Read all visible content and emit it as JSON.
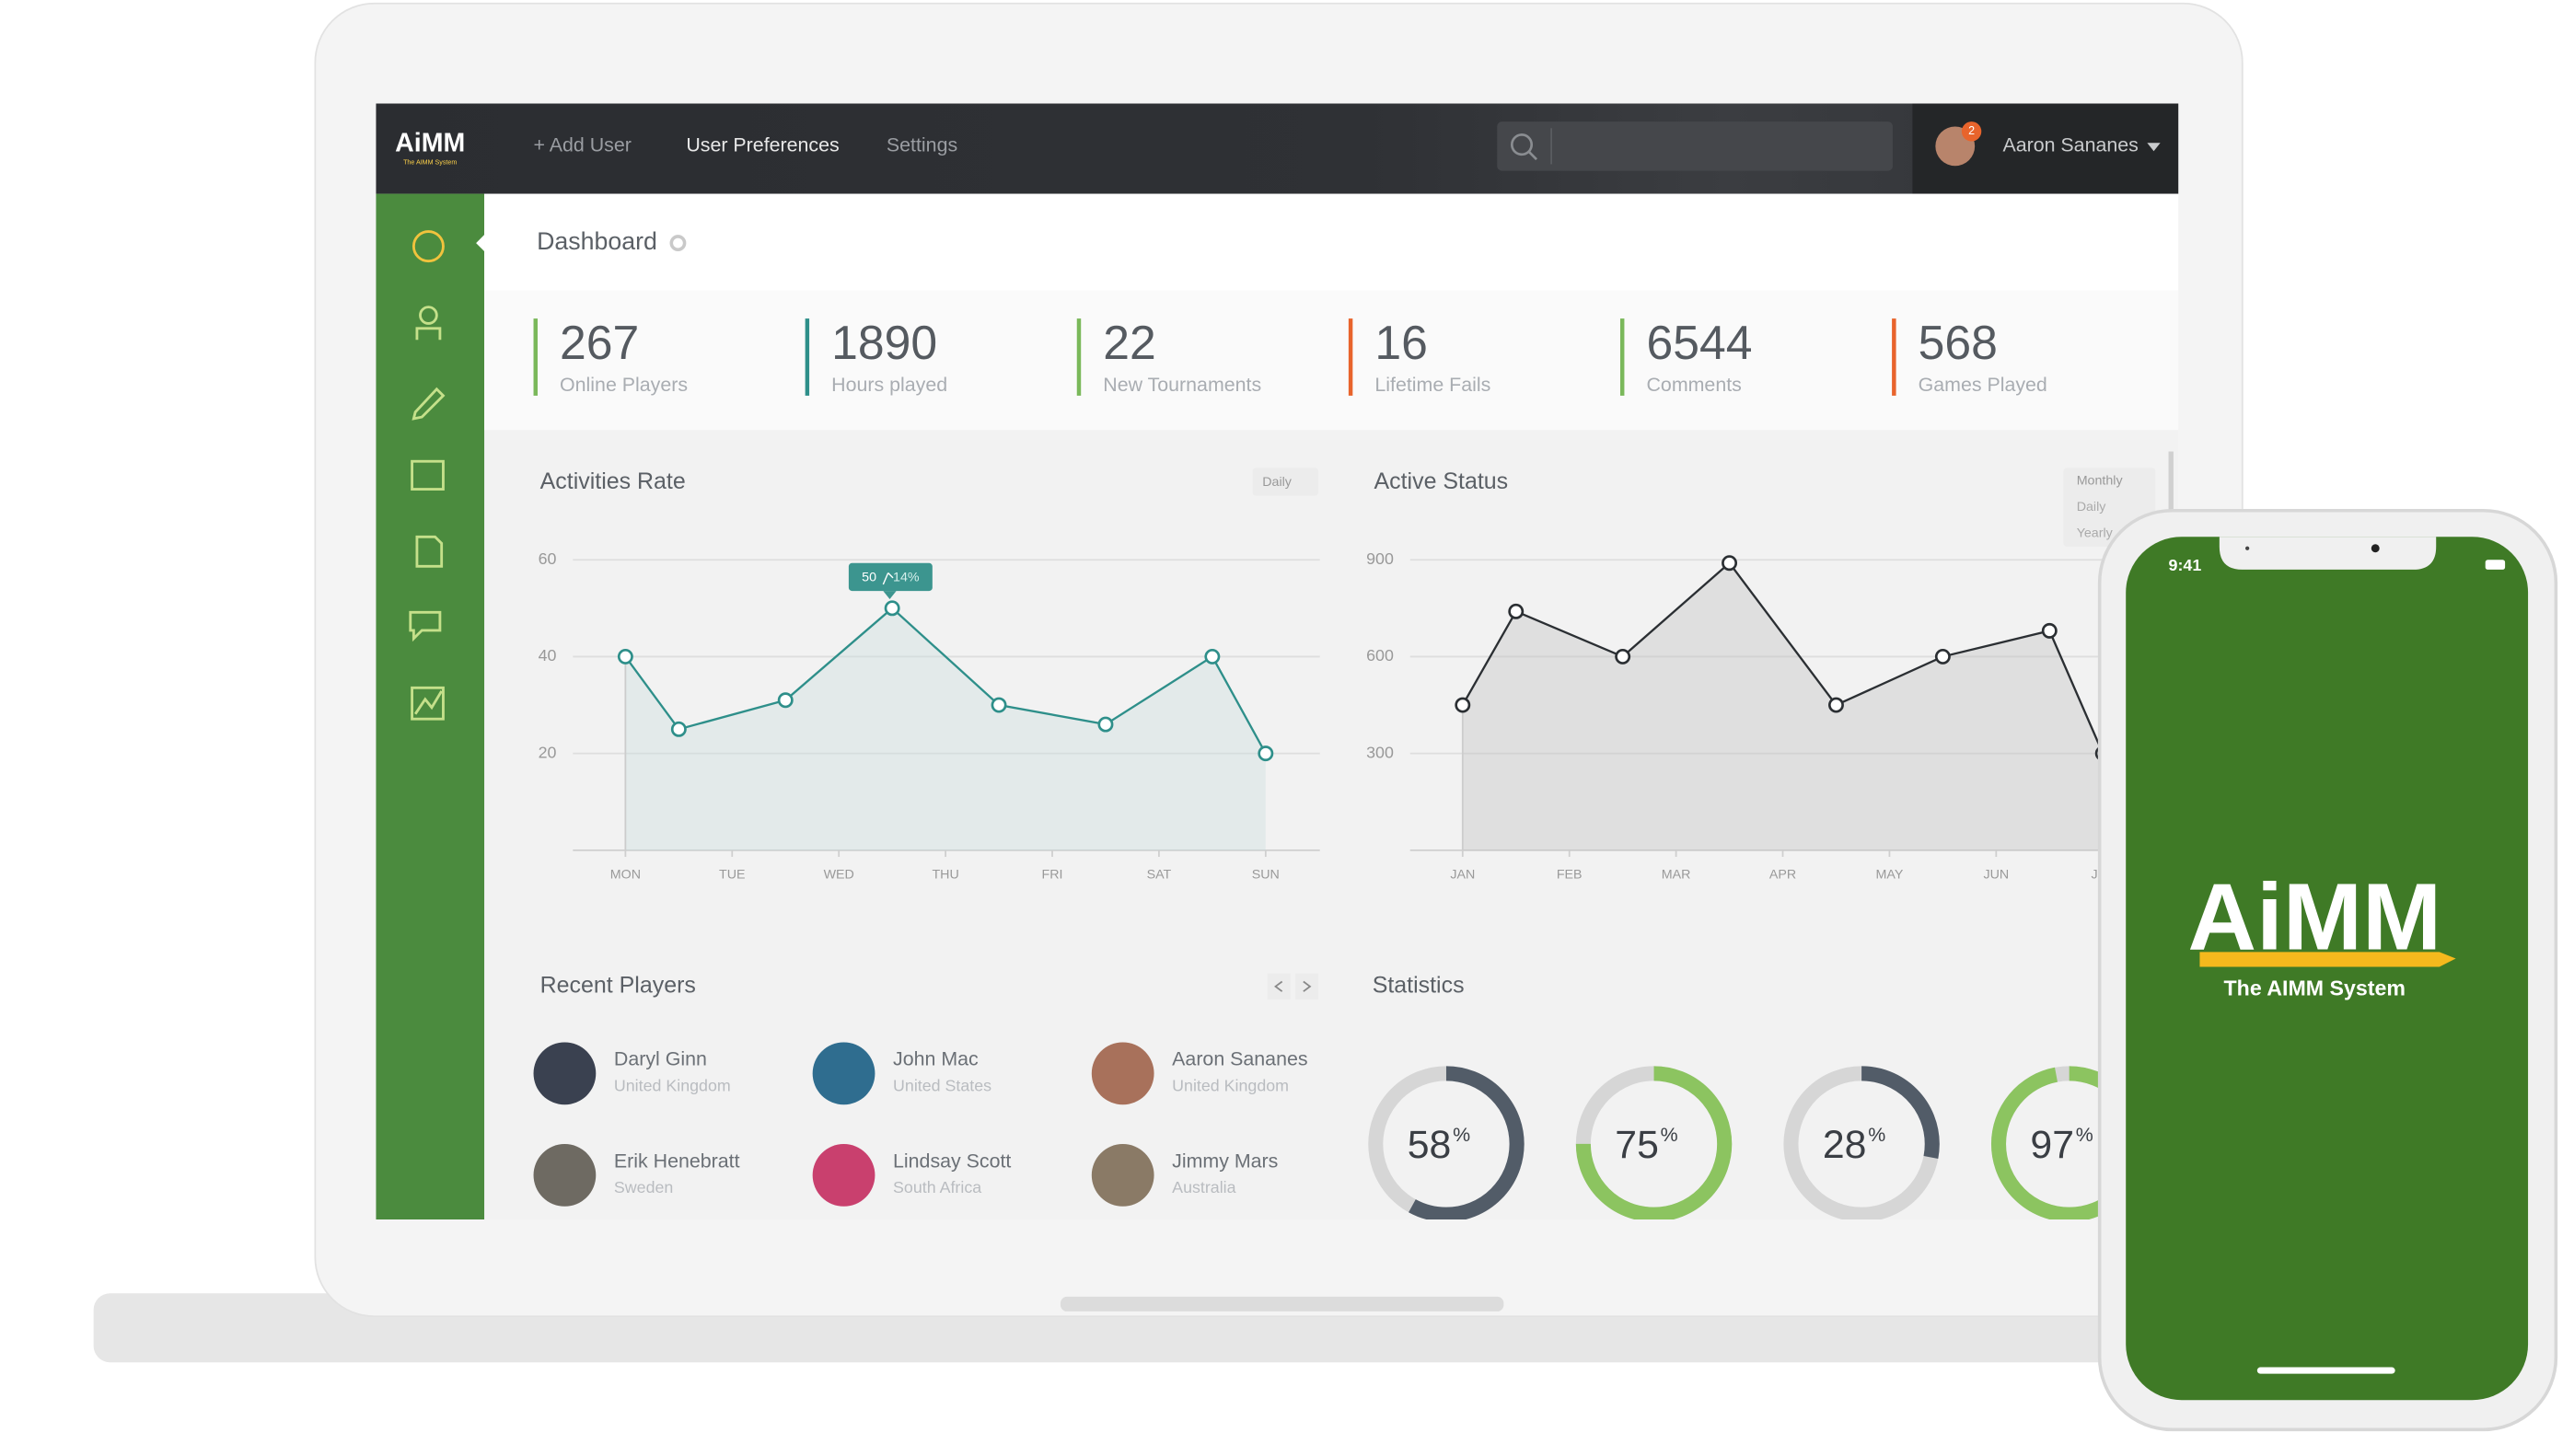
{
  "nav": {
    "logo": "AiMM",
    "logo_sub": "The AIMM System",
    "links": [
      "+ Add User",
      "User Preferences",
      "Settings"
    ],
    "user": "Aaron Sananes",
    "badge": "2"
  },
  "header": {
    "title": "Dashboard"
  },
  "stats": [
    {
      "value": "267",
      "label": "Online Players",
      "color": "#7ab85a"
    },
    {
      "value": "1890",
      "label": "Hours played",
      "color": "#2e8f8a"
    },
    {
      "value": "22",
      "label": "New Tournaments",
      "color": "#7ab85a"
    },
    {
      "value": "16",
      "label": "Lifetime Fails",
      "color": "#e8642c"
    },
    {
      "value": "6544",
      "label": "Comments",
      "color": "#7ab85a"
    },
    {
      "value": "568",
      "label": "Games Played",
      "color": "#e8642c"
    }
  ],
  "activities_chart": {
    "type": "line",
    "title": "Activities Rate",
    "dropdown": "Daily",
    "x": [
      0,
      0.5,
      1.5,
      2.5,
      3.5,
      4.5,
      5.5,
      6
    ],
    "values": [
      40,
      25,
      31,
      50,
      30,
      26,
      40,
      20
    ],
    "xlim": [
      0,
      6
    ],
    "xticks": [
      {
        "value": 0,
        "label": "MON"
      },
      {
        "value": 1,
        "label": "TUE"
      },
      {
        "value": 2,
        "label": "WED"
      },
      {
        "value": 3,
        "label": "THU"
      },
      {
        "value": 4,
        "label": "FRI"
      },
      {
        "value": 5,
        "label": "SAT"
      },
      {
        "value": 6,
        "label": "SUN"
      }
    ],
    "ylim": [
      0,
      60
    ],
    "yticks": [
      20,
      40,
      60
    ],
    "color": "#2e8f8a",
    "tooltip_value": "50",
    "tooltip_change": "14%"
  },
  "status_chart": {
    "type": "line",
    "title": "Active Status",
    "dropdown": [
      "Monthly",
      "Daily",
      "Yearly"
    ],
    "x": [
      0,
      0.5,
      1.5,
      2.5,
      3.5,
      4.5,
      5.5,
      6
    ],
    "values": [
      450,
      740,
      600,
      890,
      450,
      600,
      680,
      300
    ],
    "xlim": [
      0,
      6
    ],
    "xticks": [
      {
        "value": 0,
        "label": "JAN"
      },
      {
        "value": 1,
        "label": "FEB"
      },
      {
        "value": 2,
        "label": "MAR"
      },
      {
        "value": 3,
        "label": "APR"
      },
      {
        "value": 4,
        "label": "MAY"
      },
      {
        "value": 5,
        "label": "JUN"
      },
      {
        "value": 6,
        "label": "JUL"
      }
    ],
    "ylim": [
      0,
      900
    ],
    "yticks": [
      300,
      600,
      900
    ],
    "color": "#2b2f33"
  },
  "players": {
    "title": "Recent Players",
    "items": [
      {
        "name": "Daryl Ginn",
        "country": "United Kingdom"
      },
      {
        "name": "John Mac",
        "country": "United States"
      },
      {
        "name": "Aaron Sananes",
        "country": "United Kingdom"
      },
      {
        "name": "Erik Henebratt",
        "country": "Sweden"
      },
      {
        "name": "Lindsay Scott",
        "country": "South Africa"
      },
      {
        "name": "Jimmy Mars",
        "country": "Australia"
      }
    ]
  },
  "statistics": {
    "title": "Statistics",
    "unit": "%",
    "values": [
      58,
      75,
      28,
      97
    ],
    "colors": [
      "#525c68",
      "#8cc460",
      "#525c68",
      "#8cc460"
    ]
  },
  "phone": {
    "time": "9:41",
    "logo": "AiMM",
    "logo_sub": "The AIMM System"
  }
}
